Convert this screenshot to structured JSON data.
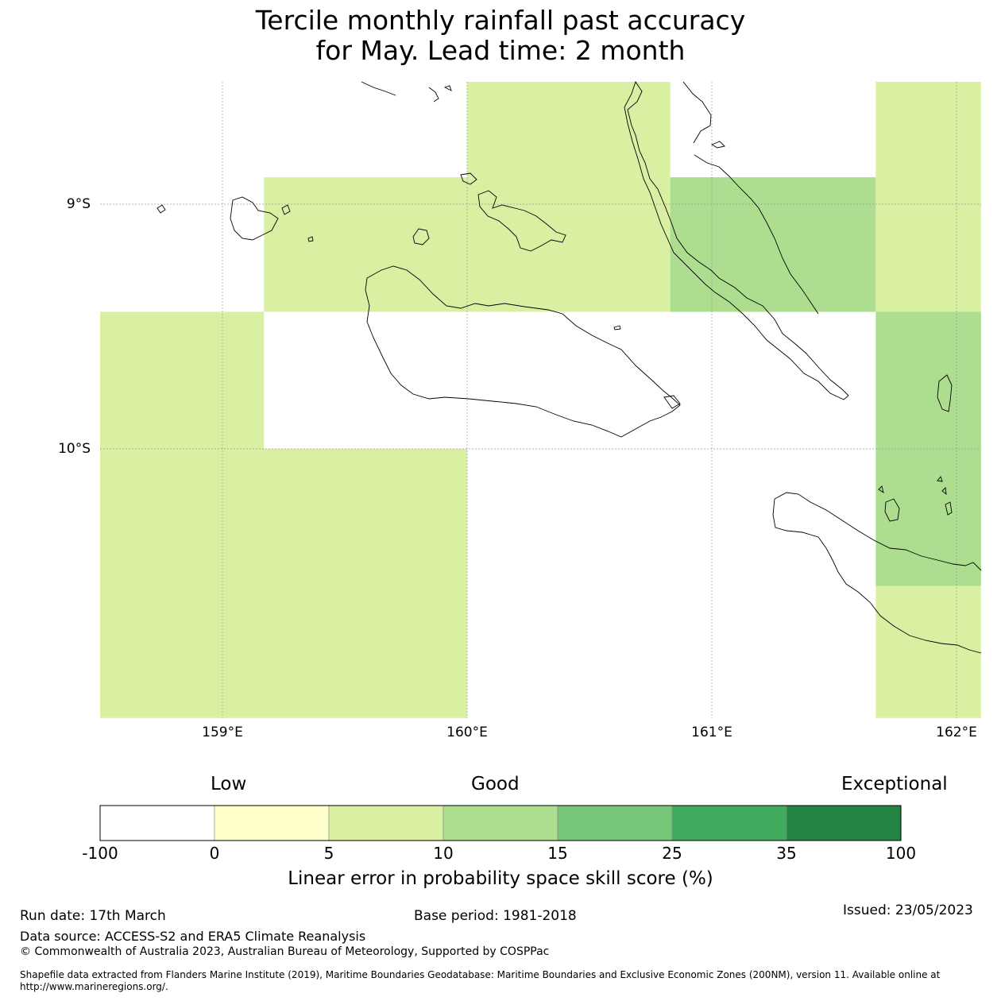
{
  "title": {
    "line1": "Tercile monthly rainfall past accuracy",
    "line2": "for May. Lead time: 2 month"
  },
  "map": {
    "lon_range": [
      158.5,
      162.1
    ],
    "lat_range": [
      -8.5,
      -11.1
    ],
    "lon_ticks": [
      {
        "value": 159,
        "label": "159°E"
      },
      {
        "value": 160,
        "label": "160°E"
      },
      {
        "value": 161,
        "label": "161°E"
      },
      {
        "value": 162,
        "label": "162°E"
      }
    ],
    "lat_ticks": [
      {
        "value": -9,
        "label": "9°S"
      },
      {
        "value": -10,
        "label": "10°S"
      }
    ],
    "cells": [
      {
        "lon": [
          160.0,
          160.83
        ],
        "lat": [
          -8.5,
          -8.89
        ],
        "category": 1
      },
      {
        "lon": [
          159.17,
          160.83
        ],
        "lat": [
          -8.89,
          -9.44
        ],
        "category": 1
      },
      {
        "lon": [
          160.83,
          161.67
        ],
        "lat": [
          -8.89,
          -9.44
        ],
        "category": 2
      },
      {
        "lon": [
          161.67,
          162.1
        ],
        "lat": [
          -8.5,
          -9.44
        ],
        "category": 1
      },
      {
        "lon": [
          158.5,
          159.17
        ],
        "lat": [
          -9.44,
          -10.0
        ],
        "category": 1
      },
      {
        "lon": [
          158.5,
          160.0
        ],
        "lat": [
          -10.0,
          -11.1
        ],
        "category": 1
      },
      {
        "lon": [
          161.67,
          162.1
        ],
        "lat": [
          -9.44,
          -10.56
        ],
        "category": 2
      },
      {
        "lon": [
          161.67,
          162.1
        ],
        "lat": [
          -10.56,
          -11.1
        ],
        "category": 1
      }
    ]
  },
  "colorbar": {
    "categories": [
      "Low",
      "Good",
      "Exceptional"
    ],
    "colors": [
      "#ffffff",
      "#ffffcc",
      "#d9f0a3",
      "#addd8e",
      "#78c679",
      "#41ab5d",
      "#238443"
    ],
    "ticks": [
      "-100",
      "0",
      "5",
      "10",
      "15",
      "25",
      "35",
      "100"
    ],
    "label": "Linear error in probability space skill score (%)"
  },
  "footer": {
    "run_date": "Run date: 17th March",
    "base_period": "Base period: 1981-2018",
    "issued": "Issued: 23/05/2023",
    "data_source": "Data source: ACCESS-S2 and ERA5 Climate Reanalysis",
    "copyright": "© Commonwealth of Australia 2023, Australian Bureau of Meteorology, Supported by COSPPac",
    "shapefile": "Shapefile data extracted from Flanders Marine Institute (2019), Maritime Boundaries Geodatabase: Maritime Boundaries and Exclusive Economic Zones (200NM), version 11. Available online at http://www.marineregions.org/."
  }
}
